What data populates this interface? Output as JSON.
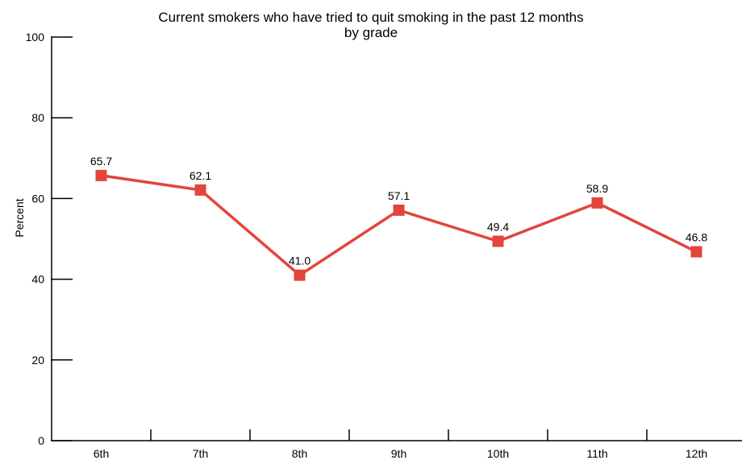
{
  "chart_data": {
    "type": "line",
    "title": "Current smokers who have tried to quit smoking in the past 12 months",
    "subtitle": "by grade",
    "xlabel": "",
    "ylabel": "Percent",
    "categories": [
      "6th",
      "7th",
      "8th",
      "9th",
      "10th",
      "11th",
      "12th"
    ],
    "values": [
      65.7,
      62.1,
      41.0,
      57.1,
      49.4,
      58.9,
      46.8
    ],
    "data_labels": [
      "65.7",
      "62.1",
      "41.0",
      "57.1",
      "49.4",
      "58.9",
      "46.8"
    ],
    "ylim": [
      0,
      100
    ],
    "yticks": [
      0,
      20,
      40,
      60,
      80,
      100
    ],
    "grid": false,
    "legend": "none",
    "colors": {
      "series": "#e2453c",
      "axis": "#000000"
    }
  }
}
